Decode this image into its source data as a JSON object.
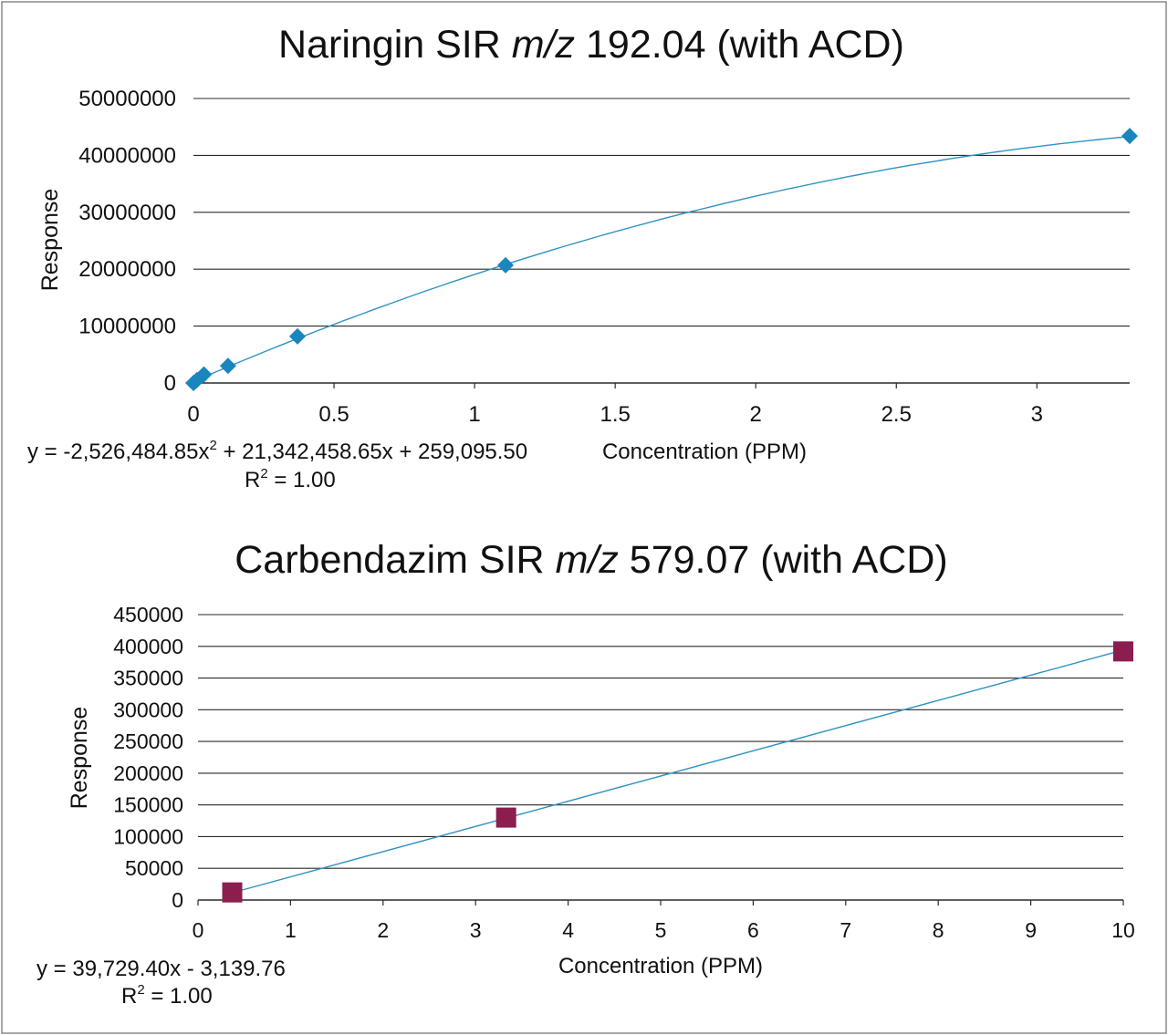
{
  "chart_data": [
    {
      "type": "scatter",
      "title": {
        "prefix": "Naringin SIR ",
        "italic": "m/z",
        "suffix": " 192.04 (with ACD)"
      },
      "xlabel": "Concentration (PPM)",
      "ylabel": "Response",
      "xlim": [
        0,
        3.33
      ],
      "ylim": [
        0,
        50000000
      ],
      "xticks": [
        0,
        0.5,
        1,
        1.5,
        2,
        2.5,
        3
      ],
      "xtick_labels": [
        "0",
        "0.5",
        "1",
        "1.5",
        "2",
        "2.5",
        "3"
      ],
      "yticks": [
        0,
        10000000,
        20000000,
        30000000,
        40000000,
        50000000
      ],
      "ytick_labels": [
        "0",
        "10000000",
        "20000000",
        "30000000",
        "40000000",
        "50000000"
      ],
      "grid": "horizontal",
      "marker": "diamond",
      "marker_color": "#1a86bd",
      "line_color": "#2f93c2",
      "trendline": {
        "type": "polynomial",
        "coefficients": [
          -2526484.85,
          21342458.65,
          259095.5
        ]
      },
      "equation": {
        "main": "y = -2,526,484.85x",
        "sup": "2",
        "rest": " + 21,342,458.65x + 259,095.50"
      },
      "r2": {
        "pre": "R",
        "sup": "2",
        "post": " = 1.00"
      },
      "series": [
        {
          "x": [
            0,
            0.012,
            0.037,
            0.123,
            0.37,
            1.11,
            3.33
          ],
          "y": [
            0,
            500000,
            1500000,
            3000000,
            8200000,
            20700000,
            43400000
          ]
        }
      ]
    },
    {
      "type": "scatter",
      "title": {
        "prefix": "Carbendazim SIR ",
        "italic": "m/z",
        "suffix": " 579.07 (with ACD)"
      },
      "xlabel": "Concentration (PPM)",
      "ylabel": "Response",
      "xlim": [
        0,
        10
      ],
      "ylim": [
        0,
        450000
      ],
      "xticks": [
        0,
        1,
        2,
        3,
        4,
        5,
        6,
        7,
        8,
        9,
        10
      ],
      "xtick_labels": [
        "0",
        "1",
        "2",
        "3",
        "4",
        "5",
        "6",
        "7",
        "8",
        "9",
        "10"
      ],
      "yticks": [
        0,
        50000,
        100000,
        150000,
        200000,
        250000,
        300000,
        350000,
        400000,
        450000
      ],
      "ytick_labels": [
        "0",
        "50000",
        "100000",
        "150000",
        "200000",
        "250000",
        "300000",
        "350000",
        "400000",
        "450000"
      ],
      "grid": "horizontal",
      "marker": "square",
      "marker_color": "#8b1d4f",
      "line_color": "#2f93c2",
      "trendline": {
        "type": "linear",
        "coefficients": [
          39729.4,
          -3139.76
        ]
      },
      "equation": {
        "main": "y = 39,729.40x - 3,139.76",
        "sup": "",
        "rest": ""
      },
      "r2": {
        "pre": "R",
        "sup": "2",
        "post": " = 1.00"
      },
      "series": [
        {
          "x": [
            0.37,
            3.33,
            10
          ],
          "y": [
            12000,
            130000,
            392000
          ]
        }
      ]
    }
  ]
}
